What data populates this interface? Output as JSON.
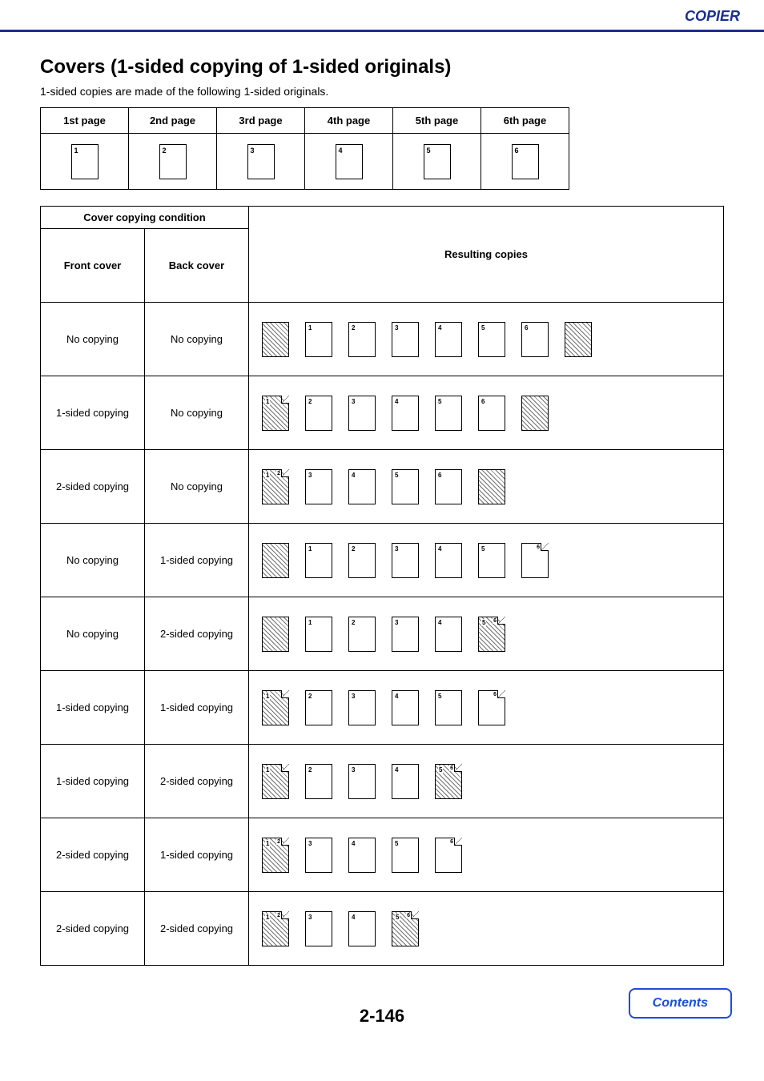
{
  "header": {
    "section": "COPIER"
  },
  "title": "Covers (1-sided copying of 1-sided originals)",
  "subtitle": "1-sided copies are made of the following 1-sided originals.",
  "originals": {
    "headers": [
      "1st page",
      "2nd page",
      "3rd page",
      "4th page",
      "5th page",
      "6th page"
    ],
    "labels": [
      "1",
      "2",
      "3",
      "4",
      "5",
      "6"
    ]
  },
  "main_table": {
    "cover_condition_header": "Cover copying condition",
    "front_cover_header": "Front cover",
    "back_cover_header": "Back cover",
    "resulting_header": "Resulting copies",
    "labels": {
      "no_copying": "No copying",
      "one_sided": "1-sided copying",
      "two_sided": "2-sided copying"
    },
    "rows": [
      {
        "front": "no_copying",
        "back": "no_copying",
        "sheets": [
          {
            "type": "hatched"
          },
          {
            "type": "plain",
            "n1": "1"
          },
          {
            "type": "plain",
            "n1": "2"
          },
          {
            "type": "plain",
            "n1": "3"
          },
          {
            "type": "plain",
            "n1": "4"
          },
          {
            "type": "plain",
            "n1": "5"
          },
          {
            "type": "plain",
            "n1": "6"
          },
          {
            "type": "hatched"
          }
        ]
      },
      {
        "front": "one_sided",
        "back": "no_copying",
        "sheets": [
          {
            "type": "hatched_front1",
            "n1": "1"
          },
          {
            "type": "plain",
            "n1": "2"
          },
          {
            "type": "plain",
            "n1": "3"
          },
          {
            "type": "plain",
            "n1": "4"
          },
          {
            "type": "plain",
            "n1": "5"
          },
          {
            "type": "plain",
            "n1": "6"
          },
          {
            "type": "hatched"
          }
        ]
      },
      {
        "front": "two_sided",
        "back": "no_copying",
        "sheets": [
          {
            "type": "hatched_two",
            "n1": "1",
            "n2": "2"
          },
          {
            "type": "plain",
            "n1": "3"
          },
          {
            "type": "plain",
            "n1": "4"
          },
          {
            "type": "plain",
            "n1": "5"
          },
          {
            "type": "plain",
            "n1": "6"
          },
          {
            "type": "hatched"
          }
        ]
      },
      {
        "front": "no_copying",
        "back": "one_sided",
        "sheets": [
          {
            "type": "hatched"
          },
          {
            "type": "plain",
            "n1": "1"
          },
          {
            "type": "plain",
            "n1": "2"
          },
          {
            "type": "plain",
            "n1": "3"
          },
          {
            "type": "plain",
            "n1": "4"
          },
          {
            "type": "plain",
            "n1": "5"
          },
          {
            "type": "back1",
            "n2": "6"
          }
        ]
      },
      {
        "front": "no_copying",
        "back": "two_sided",
        "sheets": [
          {
            "type": "hatched"
          },
          {
            "type": "plain",
            "n1": "1"
          },
          {
            "type": "plain",
            "n1": "2"
          },
          {
            "type": "plain",
            "n1": "3"
          },
          {
            "type": "plain",
            "n1": "4"
          },
          {
            "type": "hatched_two",
            "n1": "5",
            "n2": "6"
          }
        ]
      },
      {
        "front": "one_sided",
        "back": "one_sided",
        "sheets": [
          {
            "type": "hatched_front1",
            "n1": "1"
          },
          {
            "type": "plain",
            "n1": "2"
          },
          {
            "type": "plain",
            "n1": "3"
          },
          {
            "type": "plain",
            "n1": "4"
          },
          {
            "type": "plain",
            "n1": "5"
          },
          {
            "type": "back1",
            "n2": "6"
          }
        ]
      },
      {
        "front": "one_sided",
        "back": "two_sided",
        "sheets": [
          {
            "type": "hatched_front1",
            "n1": "1"
          },
          {
            "type": "plain",
            "n1": "2"
          },
          {
            "type": "plain",
            "n1": "3"
          },
          {
            "type": "plain",
            "n1": "4"
          },
          {
            "type": "hatched_two",
            "n1": "5",
            "n2": "6"
          }
        ]
      },
      {
        "front": "two_sided",
        "back": "one_sided",
        "sheets": [
          {
            "type": "hatched_two",
            "n1": "1",
            "n2": "2"
          },
          {
            "type": "plain",
            "n1": "3"
          },
          {
            "type": "plain",
            "n1": "4"
          },
          {
            "type": "plain",
            "n1": "5"
          },
          {
            "type": "back1",
            "n2": "6"
          }
        ]
      },
      {
        "front": "two_sided",
        "back": "two_sided",
        "sheets": [
          {
            "type": "hatched_two",
            "n1": "1",
            "n2": "2"
          },
          {
            "type": "plain",
            "n1": "3"
          },
          {
            "type": "plain",
            "n1": "4"
          },
          {
            "type": "hatched_two",
            "n1": "5",
            "n2": "6"
          }
        ]
      }
    ]
  },
  "footer": {
    "page_number": "2-146",
    "contents_label": "Contents"
  },
  "colors": {
    "accent": "#1a2f8f",
    "link": "#1a4fd6",
    "border": "#000000",
    "background": "#ffffff"
  }
}
